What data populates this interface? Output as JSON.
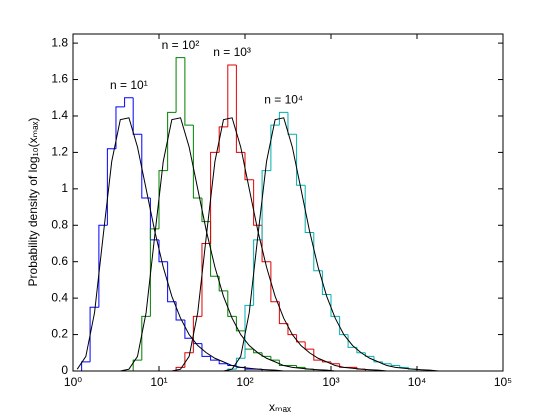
{
  "chart_data": {
    "type": "step-histogram",
    "ylabel": "Probability density of log₁₀(xₘₐₓ)",
    "xlabel": "xₘₐₓ",
    "xscale": "log",
    "xlim": [
      1,
      100000
    ],
    "ylim": [
      0,
      1.85
    ],
    "xticks": [
      {
        "value": 1,
        "label": "10⁰"
      },
      {
        "value": 10,
        "label": "10¹"
      },
      {
        "value": 100,
        "label": "10²"
      },
      {
        "value": 1000,
        "label": "10³"
      },
      {
        "value": 10000,
        "label": "10⁴"
      },
      {
        "value": 100000,
        "label": "10⁵"
      }
    ],
    "yticks": [
      0,
      0.2,
      0.4,
      0.6,
      0.8,
      1,
      1.2,
      1.4,
      1.6,
      1.8
    ],
    "grid": false,
    "fit_color": "#000000",
    "bins": [
      1,
      1.26,
      1.58,
      2,
      2.51,
      3.16,
      3.98,
      5.01,
      6.31,
      7.94,
      10,
      12.6,
      15.8,
      20,
      25.1,
      31.6,
      39.8,
      50.1,
      63.1,
      79.4,
      100,
      126,
      158,
      200,
      251,
      316,
      398,
      501,
      631,
      794,
      1000,
      1260,
      1580,
      2000,
      2510,
      3160,
      3980,
      5010,
      6310,
      7940,
      10000,
      12600,
      15800,
      20000,
      25100,
      31600
    ],
    "fit_x": [
      1.12,
      1.41,
      1.78,
      2.24,
      2.82,
      3.55,
      4.47,
      5.62,
      7.08,
      8.91,
      11.2,
      14.1,
      17.8,
      22.4,
      28.2,
      35.5,
      44.7,
      56.2,
      70.8,
      89.1,
      112,
      141,
      178,
      224,
      282,
      355,
      447,
      562,
      708,
      891,
      1120,
      1410,
      1780,
      2240,
      2820,
      3550,
      4470,
      5620,
      7080,
      8910,
      11200,
      14100,
      17800,
      22400,
      28200
    ],
    "series": [
      {
        "name": "n = 10¹",
        "color": "#0000ff",
        "values": [
          0,
          0.05,
          0.35,
          0.8,
          1.22,
          1.45,
          1.5,
          1.3,
          0.95,
          0.72,
          0.6,
          0.38,
          0.28,
          0.18,
          0.15,
          0.08,
          0.06,
          0.04,
          0.03,
          0.02,
          0.01,
          0.01,
          0,
          0,
          0,
          0,
          0,
          0,
          0,
          0,
          0,
          0,
          0,
          0,
          0,
          0,
          0,
          0,
          0,
          0,
          0,
          0,
          0,
          0,
          0
        ],
        "fit": [
          0.01,
          0.08,
          0.32,
          0.74,
          1.15,
          1.38,
          1.39,
          1.23,
          1,
          0.77,
          0.57,
          0.41,
          0.29,
          0.2,
          0.14,
          0.1,
          0.07,
          0.05,
          0.03,
          0.02,
          0.015,
          0.01,
          0.007,
          0.005,
          0,
          0,
          0,
          0,
          0,
          0,
          0,
          0,
          0,
          0,
          0,
          0,
          0,
          0,
          0,
          0,
          0,
          0,
          0,
          0,
          0
        ]
      },
      {
        "name": "n = 10²",
        "color": "#008000",
        "values": [
          0,
          0,
          0,
          0,
          0,
          0,
          0,
          0.06,
          0.3,
          0.78,
          1.1,
          1.42,
          1.72,
          1.35,
          0.95,
          0.82,
          0.52,
          0.44,
          0.3,
          0.22,
          0.12,
          0.1,
          0.08,
          0.06,
          0.03,
          0.03,
          0.02,
          0.01,
          0,
          0,
          0,
          0,
          0,
          0,
          0,
          0,
          0,
          0,
          0,
          0,
          0,
          0,
          0,
          0,
          0
        ],
        "fit": [
          0,
          0,
          0,
          0,
          0,
          0,
          0.01,
          0.08,
          0.32,
          0.74,
          1.15,
          1.38,
          1.39,
          1.23,
          1,
          0.77,
          0.57,
          0.41,
          0.29,
          0.2,
          0.14,
          0.1,
          0.07,
          0.05,
          0.03,
          0.02,
          0.015,
          0.01,
          0.007,
          0.005,
          0,
          0,
          0,
          0,
          0,
          0,
          0,
          0,
          0,
          0,
          0,
          0,
          0,
          0,
          0
        ]
      },
      {
        "name": "n = 10³",
        "color": "#e00000",
        "values": [
          0,
          0,
          0,
          0,
          0,
          0,
          0,
          0,
          0,
          0,
          0,
          0,
          0.02,
          0.1,
          0.3,
          0.7,
          1.2,
          1.34,
          1.68,
          1.2,
          1.05,
          0.8,
          0.6,
          0.38,
          0.26,
          0.2,
          0.16,
          0.12,
          0.06,
          0.05,
          0.04,
          0.02,
          0.02,
          0.01,
          0,
          0,
          0,
          0,
          0,
          0,
          0,
          0,
          0,
          0,
          0
        ],
        "fit": [
          0,
          0,
          0,
          0,
          0,
          0,
          0,
          0,
          0,
          0,
          0,
          0,
          0.01,
          0.08,
          0.32,
          0.74,
          1.15,
          1.38,
          1.39,
          1.23,
          1,
          0.77,
          0.57,
          0.41,
          0.29,
          0.2,
          0.14,
          0.1,
          0.07,
          0.05,
          0.03,
          0.02,
          0.015,
          0.01,
          0.007,
          0.005,
          0,
          0,
          0,
          0,
          0,
          0,
          0,
          0,
          0
        ]
      },
      {
        "name": "n = 10⁴",
        "color": "#00b0b0",
        "values": [
          0,
          0,
          0,
          0,
          0,
          0,
          0,
          0,
          0,
          0,
          0,
          0,
          0,
          0,
          0,
          0,
          0,
          0,
          0.01,
          0.07,
          0.36,
          0.72,
          1.1,
          1.35,
          1.42,
          1.3,
          1.02,
          0.76,
          0.55,
          0.42,
          0.3,
          0.2,
          0.13,
          0.1,
          0.08,
          0.05,
          0.04,
          0.03,
          0.02,
          0.01,
          0,
          0,
          0,
          0,
          0
        ],
        "fit": [
          0,
          0,
          0,
          0,
          0,
          0,
          0,
          0,
          0,
          0,
          0,
          0,
          0,
          0,
          0,
          0,
          0,
          0,
          0.01,
          0.08,
          0.32,
          0.74,
          1.15,
          1.38,
          1.39,
          1.23,
          1,
          0.77,
          0.57,
          0.41,
          0.29,
          0.2,
          0.14,
          0.1,
          0.07,
          0.05,
          0.03,
          0.02,
          0.015,
          0.01,
          0.007,
          0.005,
          0,
          0,
          0
        ]
      }
    ]
  }
}
